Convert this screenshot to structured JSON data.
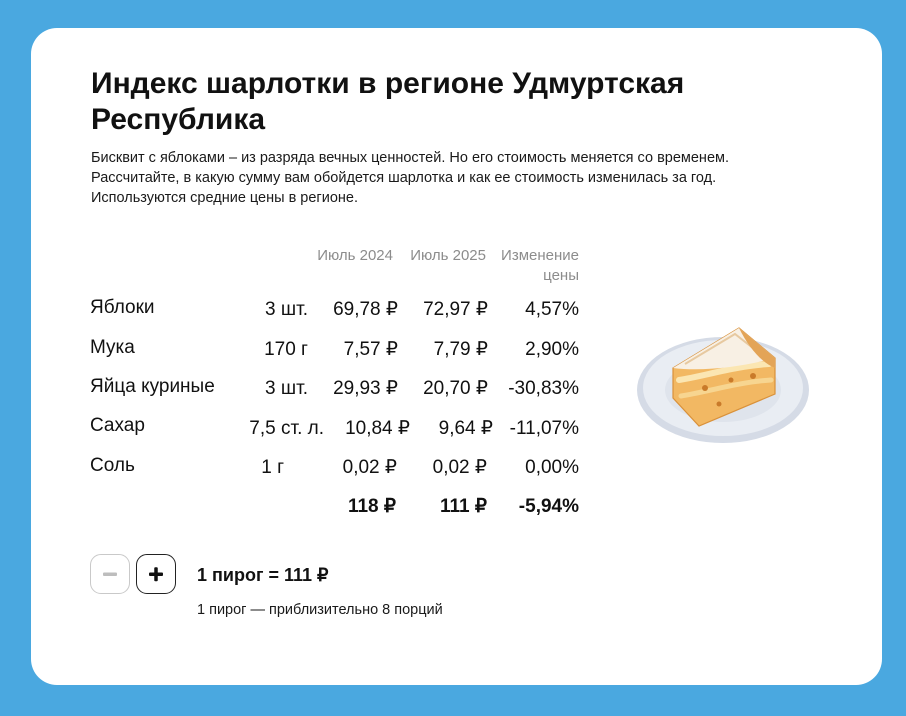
{
  "title": "Индекс шарлотки в регионе Удмуртская Республика",
  "subtitle": "Бисквит с яблоками – из разряда вечных ценностей. Но его стоимость меняется со временем. Рассчитайте, в какую сумму вам обойдется шарлотка и как ее стоимость изменилась за год. Используются средние цены в регионе.",
  "table": {
    "headers": {
      "jul2024": "Июль 2024",
      "jul2025": "Июль 2025",
      "change_line1": "Изменение",
      "change_line2": "цены"
    },
    "rows": [
      {
        "name": "Яблоки",
        "qty": "3 шт.",
        "p2024": "69,78 ₽",
        "p2025": "72,97 ₽",
        "change": "4,57%"
      },
      {
        "name": "Мука",
        "qty": "170 г",
        "p2024": "7,57 ₽",
        "p2025": "7,79 ₽",
        "change": "2,90%"
      },
      {
        "name": "Яйца куриные",
        "qty": "3 шт.",
        "p2024": "29,93 ₽",
        "p2025": "20,70 ₽",
        "change": "-30,83%"
      },
      {
        "name": "Сахар",
        "qty": "7,5 ст. л.",
        "p2024": "10,84 ₽",
        "p2025": "9,64 ₽",
        "change": "-11,07%"
      },
      {
        "name": "Соль",
        "qty": "1 г",
        "p2024": "0,02 ₽",
        "p2025": "0,02 ₽",
        "change": "0,00%"
      }
    ],
    "total": {
      "p2024": "118 ₽",
      "p2025": "111 ₽",
      "change": "-5,94%"
    }
  },
  "calculator": {
    "result": "1 пирог = 111 ₽",
    "note": "1 пирог — приблизительно 8 порций",
    "minus_icon": "minus-icon",
    "plus_icon": "plus-icon"
  },
  "colors": {
    "background": "#4aa8e0",
    "card": "#ffffff",
    "header_text": "#8c8c8c"
  }
}
